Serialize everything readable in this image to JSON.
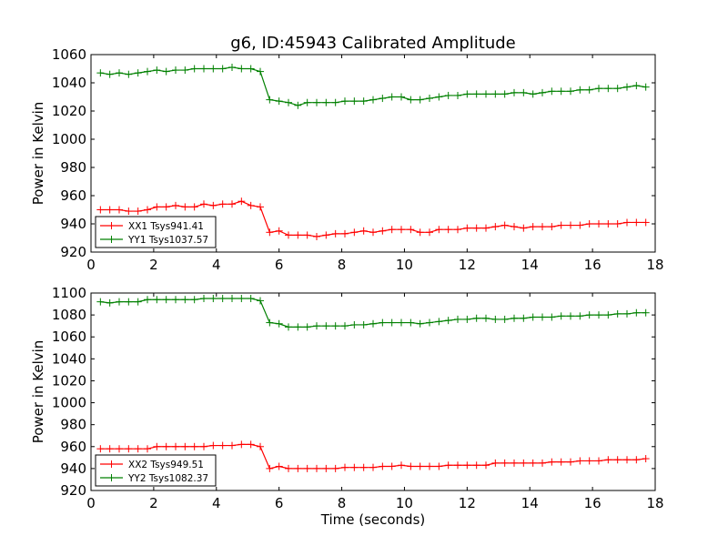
{
  "title": "g6, ID:45943 Calibrated Amplitude",
  "colors": {
    "xx": "#ff0000",
    "yy": "#008000"
  },
  "chart_data": [
    {
      "type": "line",
      "title": "g6, ID:45943 Calibrated Amplitude",
      "xlabel": "",
      "ylabel": "Power in Kelvin",
      "xlim": [
        0,
        18
      ],
      "ylim": [
        920,
        1060
      ],
      "xticks": [
        0,
        2,
        4,
        6,
        8,
        10,
        12,
        14,
        16,
        18
      ],
      "yticks": [
        920,
        940,
        960,
        980,
        1000,
        1020,
        1040,
        1060
      ],
      "grid": false,
      "legend_position": "lower-left",
      "x": [
        0.3,
        0.6,
        0.9,
        1.2,
        1.5,
        1.8,
        2.1,
        2.4,
        2.7,
        3.0,
        3.3,
        3.6,
        3.9,
        4.2,
        4.5,
        4.8,
        5.1,
        5.4,
        5.7,
        6.0,
        6.3,
        6.6,
        6.9,
        7.2,
        7.5,
        7.8,
        8.1,
        8.4,
        8.7,
        9.0,
        9.3,
        9.6,
        9.9,
        10.2,
        10.5,
        10.8,
        11.1,
        11.4,
        11.7,
        12.0,
        12.3,
        12.6,
        12.9,
        13.2,
        13.5,
        13.8,
        14.1,
        14.4,
        14.7,
        15.0,
        15.3,
        15.6,
        15.9,
        16.2,
        16.5,
        16.8,
        17.1,
        17.4,
        17.7
      ],
      "series": [
        {
          "name": "XX1 Tsys941.41",
          "color": "#ff0000",
          "values": [
            950,
            950,
            950,
            949,
            949,
            950,
            952,
            952,
            953,
            952,
            952,
            954,
            953,
            954,
            954,
            956,
            953,
            952,
            934,
            935,
            932,
            932,
            932,
            931,
            932,
            933,
            933,
            934,
            935,
            934,
            935,
            936,
            936,
            936,
            934,
            934,
            936,
            936,
            936,
            937,
            937,
            937,
            938,
            939,
            938,
            937,
            938,
            938,
            938,
            939,
            939,
            939,
            940,
            940,
            940,
            940,
            941,
            941,
            941
          ]
        },
        {
          "name": "YY1 Tsys1037.57",
          "color": "#008000",
          "values": [
            1047,
            1046,
            1047,
            1046,
            1047,
            1048,
            1049,
            1048,
            1049,
            1049,
            1050,
            1050,
            1050,
            1050,
            1051,
            1050,
            1050,
            1048,
            1028,
            1027,
            1026,
            1024,
            1026,
            1026,
            1026,
            1026,
            1027,
            1027,
            1027,
            1028,
            1029,
            1030,
            1030,
            1028,
            1028,
            1029,
            1030,
            1031,
            1031,
            1032,
            1032,
            1032,
            1032,
            1032,
            1033,
            1033,
            1032,
            1033,
            1034,
            1034,
            1034,
            1035,
            1035,
            1036,
            1036,
            1036,
            1037,
            1038,
            1037
          ]
        }
      ]
    },
    {
      "type": "line",
      "title": "",
      "xlabel": "Time (seconds)",
      "ylabel": "Power in Kelvin",
      "xlim": [
        0,
        18
      ],
      "ylim": [
        920,
        1100
      ],
      "xticks": [
        0,
        2,
        4,
        6,
        8,
        10,
        12,
        14,
        16,
        18
      ],
      "yticks": [
        920,
        940,
        960,
        980,
        1000,
        1020,
        1040,
        1060,
        1080,
        1100
      ],
      "grid": false,
      "legend_position": "lower-left",
      "x": [
        0.3,
        0.6,
        0.9,
        1.2,
        1.5,
        1.8,
        2.1,
        2.4,
        2.7,
        3.0,
        3.3,
        3.6,
        3.9,
        4.2,
        4.5,
        4.8,
        5.1,
        5.4,
        5.7,
        6.0,
        6.3,
        6.6,
        6.9,
        7.2,
        7.5,
        7.8,
        8.1,
        8.4,
        8.7,
        9.0,
        9.3,
        9.6,
        9.9,
        10.2,
        10.5,
        10.8,
        11.1,
        11.4,
        11.7,
        12.0,
        12.3,
        12.6,
        12.9,
        13.2,
        13.5,
        13.8,
        14.1,
        14.4,
        14.7,
        15.0,
        15.3,
        15.6,
        15.9,
        16.2,
        16.5,
        16.8,
        17.1,
        17.4,
        17.7
      ],
      "series": [
        {
          "name": "XX2 Tsys949.51",
          "color": "#ff0000",
          "values": [
            958,
            958,
            958,
            958,
            958,
            958,
            960,
            960,
            960,
            960,
            960,
            960,
            961,
            961,
            961,
            962,
            962,
            960,
            940,
            942,
            940,
            940,
            940,
            940,
            940,
            940,
            941,
            941,
            941,
            941,
            942,
            942,
            943,
            942,
            942,
            942,
            942,
            943,
            943,
            943,
            943,
            943,
            945,
            945,
            945,
            945,
            945,
            945,
            946,
            946,
            946,
            947,
            947,
            947,
            948,
            948,
            948,
            948,
            949
          ]
        },
        {
          "name": "YY2 Tsys1082.37",
          "color": "#008000",
          "values": [
            1092,
            1091,
            1092,
            1092,
            1092,
            1094,
            1094,
            1094,
            1094,
            1094,
            1094,
            1095,
            1095,
            1095,
            1095,
            1095,
            1095,
            1093,
            1073,
            1072,
            1069,
            1069,
            1069,
            1070,
            1070,
            1070,
            1070,
            1071,
            1071,
            1072,
            1073,
            1073,
            1073,
            1073,
            1072,
            1073,
            1074,
            1075,
            1076,
            1076,
            1077,
            1077,
            1076,
            1076,
            1077,
            1077,
            1078,
            1078,
            1078,
            1079,
            1079,
            1079,
            1080,
            1080,
            1080,
            1081,
            1081,
            1082,
            1082
          ]
        }
      ]
    }
  ]
}
